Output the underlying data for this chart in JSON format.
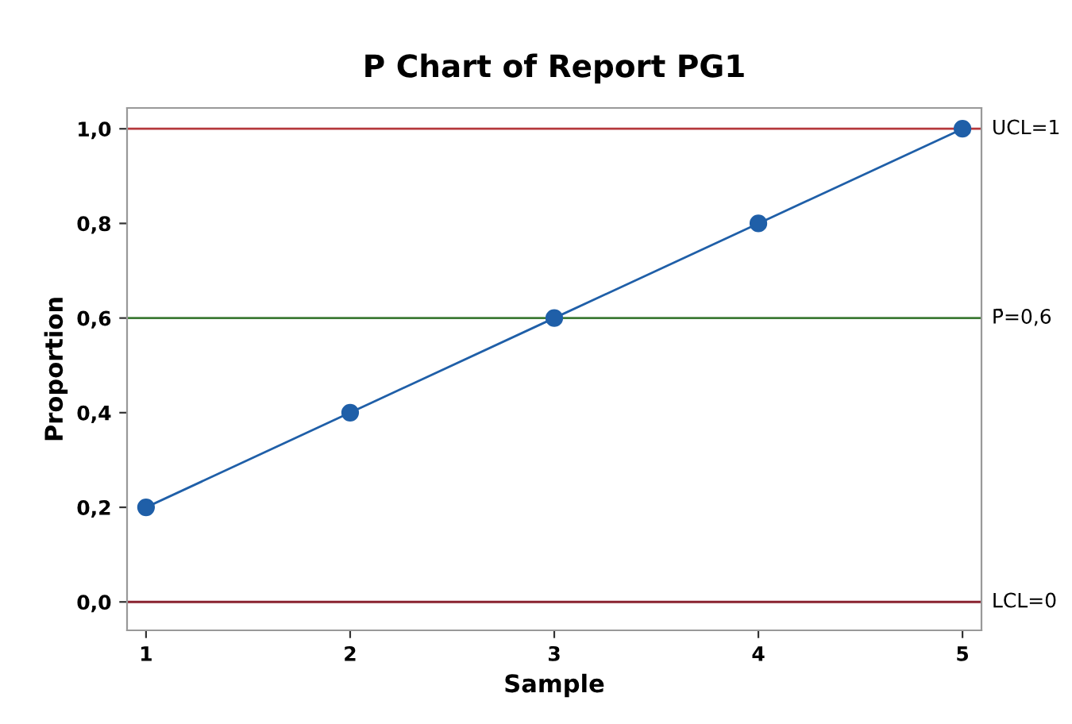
{
  "chart_data": {
    "type": "line",
    "title": "P Chart of Report PG1",
    "xlabel": "Sample",
    "ylabel": "Proportion",
    "x": [
      1,
      2,
      3,
      4,
      5
    ],
    "series": [
      {
        "color": "#1f5fa8",
        "values": [
          0.2,
          0.4,
          0.6,
          0.8,
          1.0
        ]
      }
    ],
    "marker": "circle",
    "line_style": "solid",
    "grid": false,
    "legend": false,
    "xlim": [
      0.907,
      5.093
    ],
    "xticks": [
      1,
      2,
      3,
      4,
      5
    ],
    "ylim": [
      -0.06,
      1.044
    ],
    "yticks": [
      {
        "value": 0,
        "label": "0,0"
      },
      {
        "value": 0.2,
        "label": "0,2"
      },
      {
        "value": 0.4,
        "label": "0,4"
      },
      {
        "value": 0.6,
        "label": "0,6"
      },
      {
        "value": 0.8,
        "label": "0,8"
      },
      {
        "value": 1.0,
        "label": "1,0"
      }
    ],
    "ref_lines": [
      {
        "axis": "y",
        "value": 1,
        "label": "UCL=1",
        "color": "#b5383c",
        "line_style": "solid"
      },
      {
        "axis": "y",
        "value": 0.6,
        "label": "P̄=0,6",
        "color": "#3d7a35",
        "line_style": "solid"
      },
      {
        "axis": "y",
        "value": 0,
        "label": "LCL=0",
        "color": "#8a2330",
        "line_style": "solid"
      }
    ]
  }
}
